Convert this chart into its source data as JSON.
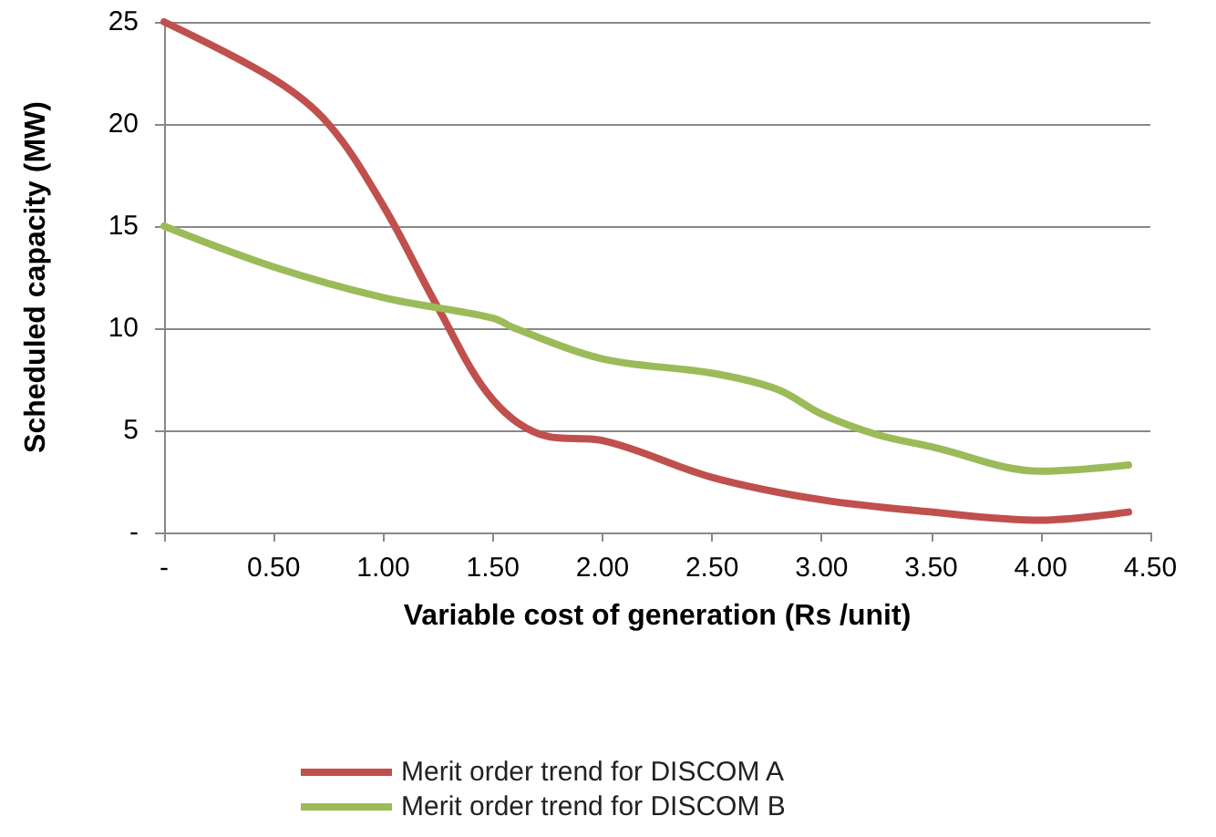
{
  "chart_data": {
    "type": "line",
    "xlabel": "Variable cost of generation (Rs /unit)",
    "ylabel": "Scheduled capacity (MW)",
    "series": [
      {
        "name": "Merit order trend for DISCOM A",
        "color": "#c0504d",
        "x": [
          0,
          0.5,
          0.75,
          1.0,
          1.25,
          1.5,
          1.75,
          2.0,
          2.5,
          3.0,
          3.5,
          4.0,
          4.4
        ],
        "values": [
          25,
          22.2,
          20,
          16,
          11,
          6.5,
          4.7,
          4.5,
          2.7,
          1.6,
          1.0,
          0.6,
          1.0
        ]
      },
      {
        "name": "Merit order trend for DISCOM B",
        "color": "#9bbb59",
        "x": [
          0,
          0.5,
          1.0,
          1.5,
          1.6,
          2.0,
          2.5,
          2.8,
          3.0,
          3.25,
          3.5,
          4.0,
          4.4
        ],
        "values": [
          15,
          13,
          11.5,
          10.5,
          10,
          8.5,
          7.8,
          7,
          5.8,
          4.8,
          4.2,
          3.0,
          3.3
        ]
      }
    ],
    "xlim": [
      0,
      4.5
    ],
    "xticks": [
      {
        "value": 0,
        "label": "-"
      },
      {
        "value": 0.5,
        "label": "0.50"
      },
      {
        "value": 1,
        "label": "1.00"
      },
      {
        "value": 1.5,
        "label": "1.50"
      },
      {
        "value": 2,
        "label": "2.00"
      },
      {
        "value": 2.5,
        "label": "2.50"
      },
      {
        "value": 3,
        "label": "3.00"
      },
      {
        "value": 3.5,
        "label": "3.50"
      },
      {
        "value": 4,
        "label": "4.00"
      },
      {
        "value": 4.5,
        "label": "4.50"
      }
    ],
    "ylim": [
      0,
      25
    ],
    "yticks": [
      {
        "value": 0,
        "label": "-"
      },
      5,
      10,
      15,
      20,
      25
    ],
    "grid": "y",
    "legend": "bottom",
    "marker": "none",
    "line_style": "solid"
  }
}
